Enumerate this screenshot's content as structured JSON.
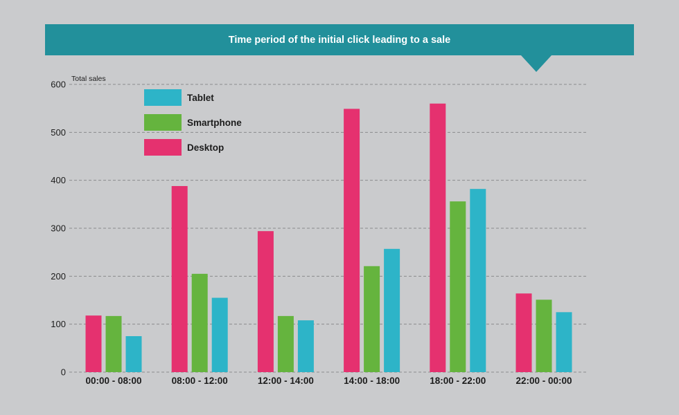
{
  "chart_data": {
    "type": "bar",
    "title": "Time period of the initial click leading to a sale",
    "ylabel": "Total sales",
    "xlabel": "",
    "ylim": [
      0,
      600
    ],
    "yticks": [
      0,
      100,
      200,
      300,
      400,
      500,
      600
    ],
    "grid": true,
    "legend_position": "top-left",
    "categories": [
      "00:00 - 08:00",
      "08:00 - 12:00",
      "12:00 - 14:00",
      "14:00 - 18:00",
      "18:00 - 22:00",
      "22:00 - 00:00"
    ],
    "series": [
      {
        "name": "Desktop",
        "color": "#e5316f",
        "values": [
          118,
          388,
          294,
          549,
          560,
          164
        ]
      },
      {
        "name": "Smartphone",
        "color": "#65b43e",
        "values": [
          117,
          205,
          117,
          221,
          356,
          151
        ]
      },
      {
        "name": "Tablet",
        "color": "#2db4c8",
        "values": [
          75,
          155,
          108,
          257,
          382,
          125
        ]
      }
    ],
    "legend_order": [
      "Tablet",
      "Smartphone",
      "Desktop"
    ]
  },
  "colors": {
    "background": "#cacbcd",
    "banner": "#22909b",
    "grid": "#8a8b8d"
  }
}
